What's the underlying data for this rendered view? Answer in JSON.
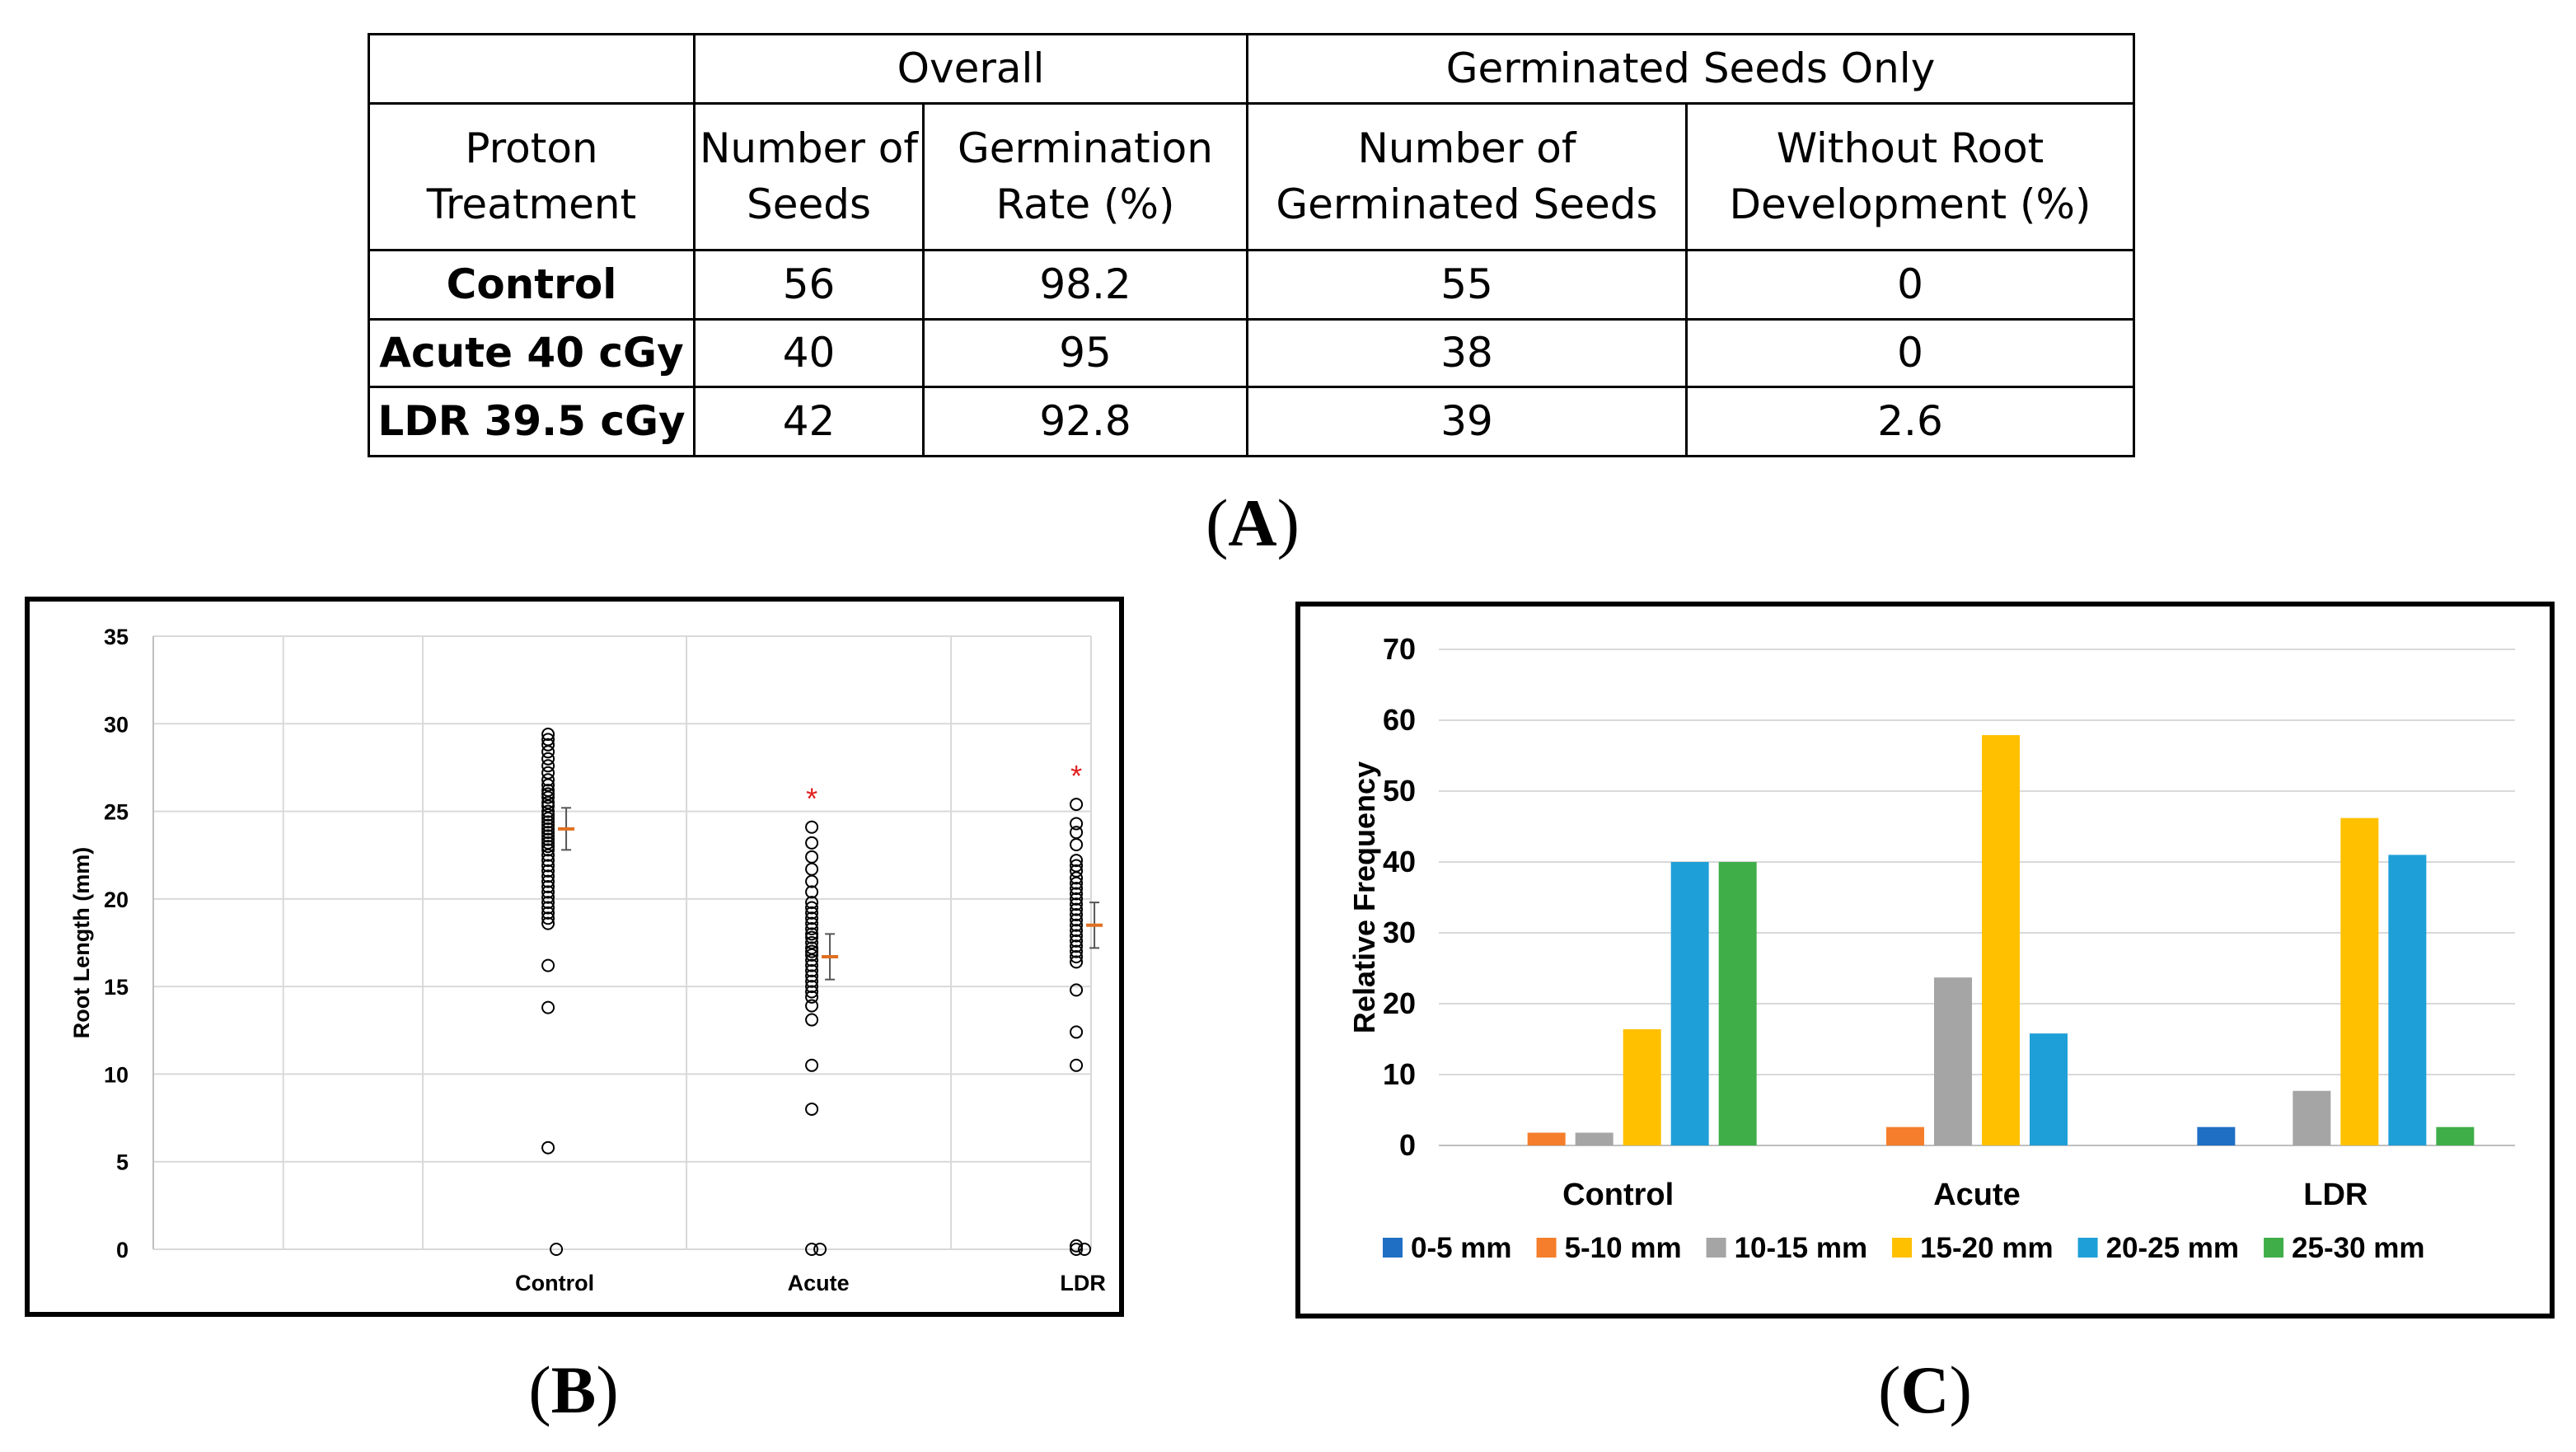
{
  "panels": {
    "a": {
      "open": "(",
      "letter": "A",
      "close": ")"
    },
    "b": {
      "open": "(",
      "letter": "B",
      "close": ")"
    },
    "c": {
      "open": "(",
      "letter": "C",
      "close": ")"
    }
  },
  "table": {
    "group_header_overall": "Overall",
    "group_header_germinated": "Germinated Seeds Only",
    "columns": [
      "Proton Treatment",
      "Number of Seeds",
      "Germination Rate (%)",
      "Number of Germinated Seeds",
      "Without Root Development (%)"
    ],
    "rows": [
      {
        "treatment": "Control",
        "seeds": "56",
        "rate": "98.2",
        "germinated": "55",
        "without_root": "0"
      },
      {
        "treatment": "Acute 40 cGy",
        "seeds": "40",
        "rate": "95",
        "germinated": "38",
        "without_root": "0"
      },
      {
        "treatment": "LDR 39.5 cGy",
        "seeds": "42",
        "rate": "92.8",
        "germinated": "39",
        "without_root": "2.6"
      }
    ]
  },
  "chart_data": [
    {
      "type": "scatter",
      "panel": "B",
      "ylabel": "Root Length (mm)",
      "xlabel": "",
      "ylim": [
        0,
        35
      ],
      "yticks": [
        0,
        5,
        10,
        15,
        20,
        25,
        30,
        35
      ],
      "categories": [
        "Control",
        "Acute",
        "LDR"
      ],
      "grid": true,
      "significance_marker": "*",
      "significant_groups": [
        "Acute",
        "LDR"
      ],
      "series": [
        {
          "name": "Control",
          "mean": 24.0,
          "sem": 1.2,
          "points": [
            29.4,
            29.1,
            28.8,
            28.4,
            28.0,
            27.6,
            27.2,
            26.8,
            26.5,
            26.2,
            26.0,
            25.8,
            25.5,
            25.3,
            25.0,
            24.8,
            24.6,
            24.4,
            24.2,
            24.0,
            23.8,
            23.6,
            23.4,
            23.2,
            23.0,
            22.8,
            22.5,
            22.2,
            21.9,
            21.6,
            21.3,
            21.0,
            20.7,
            20.4,
            20.1,
            19.8,
            19.5,
            19.2,
            18.9,
            18.6,
            16.2,
            13.8,
            5.8,
            0.0
          ]
        },
        {
          "name": "Acute",
          "mean": 16.7,
          "sem": 1.3,
          "points": [
            24.1,
            23.2,
            22.4,
            21.7,
            21.0,
            20.4,
            19.8,
            19.5,
            19.2,
            18.9,
            18.6,
            18.3,
            18.0,
            17.8,
            17.5,
            17.2,
            17.0,
            16.8,
            16.5,
            16.2,
            15.9,
            15.6,
            15.3,
            15.0,
            14.7,
            14.4,
            13.9,
            13.1,
            10.5,
            8.0,
            0.0,
            0.0
          ]
        },
        {
          "name": "LDR",
          "mean": 18.5,
          "sem": 1.3,
          "points": [
            25.4,
            24.3,
            23.8,
            23.1,
            22.2,
            21.9,
            21.6,
            21.2,
            20.9,
            20.6,
            20.3,
            20.0,
            19.7,
            19.4,
            19.1,
            18.8,
            18.5,
            18.2,
            17.9,
            17.6,
            17.3,
            17.0,
            16.7,
            16.4,
            14.8,
            12.4,
            10.5,
            0.2,
            0.0,
            0.0
          ]
        }
      ],
      "colors": {
        "points": "#000000",
        "mean": "#e07020",
        "asterisk": "#e02020",
        "grid": "#d9d9d9"
      }
    },
    {
      "type": "bar",
      "panel": "C",
      "ylabel": "Relative Frequency",
      "xlabel": "",
      "ylim": [
        0,
        70
      ],
      "yticks": [
        0,
        10,
        20,
        30,
        40,
        50,
        60,
        70
      ],
      "categories": [
        "Control",
        "Acute",
        "LDR"
      ],
      "legend_position": "bottom",
      "grid": true,
      "series": [
        {
          "name": "0-5 mm",
          "color": "#1f6fc5",
          "values": [
            0,
            0,
            2.6
          ]
        },
        {
          "name": "5-10 mm",
          "color": "#f47e2b",
          "values": [
            1.8,
            2.6,
            0
          ]
        },
        {
          "name": "10-15 mm",
          "color": "#a5a5a5",
          "values": [
            1.8,
            23.7,
            7.7
          ]
        },
        {
          "name": "15-20 mm",
          "color": "#ffc000",
          "values": [
            16.4,
            57.9,
            46.2
          ]
        },
        {
          "name": "20-25 mm",
          "color": "#1f9fd8",
          "values": [
            40.0,
            15.8,
            41.0
          ]
        },
        {
          "name": "25-30 mm",
          "color": "#3fae49",
          "values": [
            40.0,
            0,
            2.6
          ]
        }
      ]
    }
  ]
}
